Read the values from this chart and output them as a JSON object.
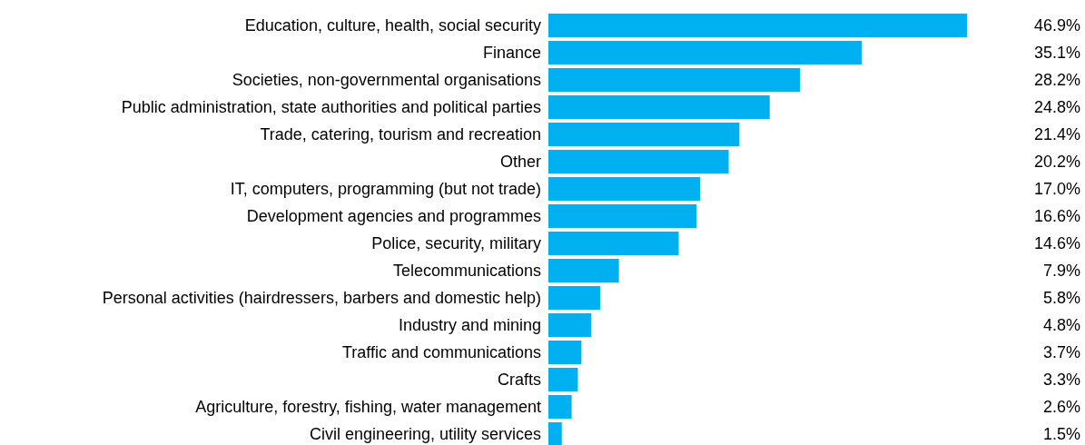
{
  "chart_data": {
    "type": "bar",
    "orientation": "horizontal",
    "categories": [
      "Education, culture, health, social security",
      "Finance",
      "Societies, non-governmental organisations",
      "Public administration, state authorities and political parties",
      "Trade, catering, tourism and recreation",
      "Other",
      "IT, computers, programming (but not trade)",
      "Development agencies and programmes",
      "Police, security, military",
      "Telecommunications",
      "Personal activities (hairdressers, barbers and domestic help)",
      "Industry and mining",
      "Traffic and communications",
      "Crafts",
      "Agriculture, forestry, fishing, water management",
      "Civil engineering, utility services"
    ],
    "values": [
      46.9,
      35.1,
      28.2,
      24.8,
      21.4,
      20.2,
      17.0,
      16.6,
      14.6,
      7.9,
      5.8,
      4.8,
      3.7,
      3.3,
      2.6,
      1.5
    ],
    "value_labels": [
      "46.9%",
      "35.1%",
      "28.2%",
      "24.8%",
      "21.4%",
      "20.2%",
      "17.0%",
      "16.6%",
      "14.6%",
      "7.9%",
      "5.8%",
      "4.8%",
      "3.7%",
      "3.3%",
      "2.6%",
      "1.5%"
    ],
    "color": "#00b0f0"
  }
}
